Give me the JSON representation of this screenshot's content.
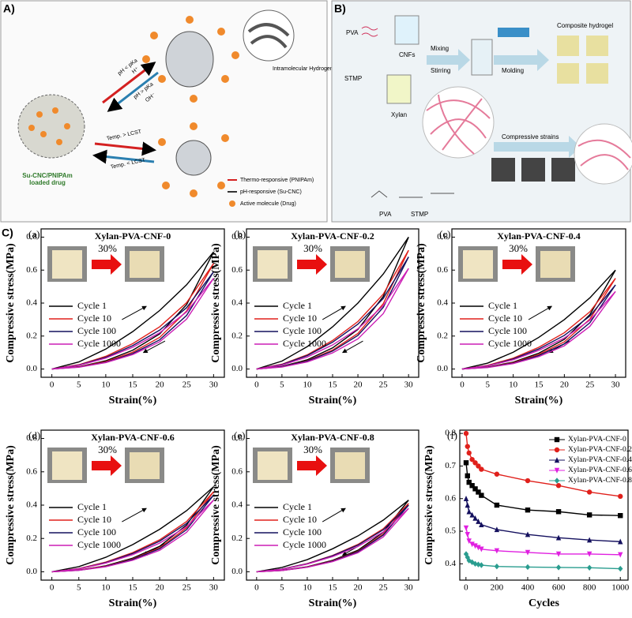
{
  "panels": {
    "A": {
      "label": "A)",
      "ph_low": "pH < pKa",
      "h_ion": "H⁺",
      "ph_high": "pH > pKa",
      "oh_ion": "OH⁻",
      "hbond": "Intramolecular Hydrogen bond",
      "temp_high": "Temp. > LCST",
      "temp_low": "Temp. < LCST",
      "loaded": "Su-CNC/PNIPAm loaded drug",
      "legend": [
        "Thermo-responsive (PNIPAm)",
        "pH-responsive (Su-CNC)",
        "Active molecule (Drug)"
      ]
    },
    "B": {
      "label": "B)",
      "pva": "PVA",
      "cnfs": "CNFs",
      "stmp": "STMP",
      "xylan": "Xylan",
      "mixing": "Mixing",
      "stirring": "Stirring",
      "molding": "Molding",
      "composite": "Composite hydrogel",
      "compressive": "Compressive strains",
      "scheme_pva": "PVA",
      "scheme_stmp": "STMP"
    },
    "C": {
      "label": "C)"
    }
  },
  "chart_data": [
    {
      "type": "line",
      "label": "(a)",
      "title": "Xylan-PVA-CNF-0",
      "annotation": "30%",
      "x_label": "Strain(%)",
      "y_label": "Compressive stress(MPa)",
      "x": [
        0,
        5,
        10,
        15,
        20,
        25,
        30
      ],
      "xlim": [
        -2,
        32
      ],
      "ylim": [
        -0.05,
        0.85
      ],
      "xticks": [
        0,
        5,
        10,
        15,
        20,
        25,
        30
      ],
      "yticks": [
        {
          "value": 0,
          "label": "0.0"
        },
        0.2,
        0.4,
        0.6,
        0.8
      ],
      "legend": "left",
      "series": [
        {
          "name": "Cycle 1",
          "color": "#000000",
          "values": [
            0,
            0.043,
            0.121,
            0.227,
            0.355,
            0.511,
            0.71
          ],
          "unload_values": [
            0,
            0.014,
            0.05,
            0.114,
            0.213,
            0.391,
            0.71
          ]
        },
        {
          "name": "Cycle 10",
          "color": "#e0201b",
          "values": [
            0,
            0.026,
            0.077,
            0.154,
            0.256,
            0.403,
            0.64
          ],
          "unload_values": [
            0,
            0.013,
            0.045,
            0.102,
            0.192,
            0.352,
            0.64
          ]
        },
        {
          "name": "Cycle 100",
          "color": "#14105e",
          "values": [
            0,
            0.024,
            0.071,
            0.142,
            0.236,
            0.372,
            0.59
          ],
          "unload_values": [
            0,
            0.012,
            0.041,
            0.094,
            0.177,
            0.325,
            0.59
          ]
        },
        {
          "name": "Cycle 1000",
          "color": "#cc1fb5",
          "values": [
            0,
            0.022,
            0.066,
            0.132,
            0.22,
            0.347,
            0.55
          ],
          "unload_values": [
            0,
            0.011,
            0.039,
            0.088,
            0.165,
            0.303,
            0.55
          ]
        }
      ]
    },
    {
      "type": "line",
      "label": "(b)",
      "title": "Xylan-PVA-CNF-0.2",
      "annotation": "30%",
      "x_label": "Strain(%)",
      "y_label": "Compressive stress(MPa)",
      "x": [
        0,
        5,
        10,
        15,
        20,
        25,
        30
      ],
      "xlim": [
        -2,
        32
      ],
      "ylim": [
        -0.05,
        0.85
      ],
      "xticks": [
        0,
        5,
        10,
        15,
        20,
        25,
        30
      ],
      "yticks": [
        {
          "value": 0,
          "label": "0.0"
        },
        0.2,
        0.4,
        0.6,
        0.8
      ],
      "legend": "left",
      "series": [
        {
          "name": "Cycle 1",
          "color": "#000000",
          "values": [
            0,
            0.048,
            0.136,
            0.256,
            0.4,
            0.576,
            0.8
          ],
          "unload_values": [
            0,
            0.016,
            0.056,
            0.128,
            0.24,
            0.44,
            0.8
          ]
        },
        {
          "name": "Cycle 10",
          "color": "#e0201b",
          "values": [
            0,
            0.029,
            0.086,
            0.173,
            0.288,
            0.454,
            0.72
          ],
          "unload_values": [
            0,
            0.014,
            0.05,
            0.115,
            0.216,
            0.396,
            0.72
          ]
        },
        {
          "name": "Cycle 100",
          "color": "#14105e",
          "values": [
            0,
            0.027,
            0.082,
            0.163,
            0.272,
            0.428,
            0.68
          ],
          "unload_values": [
            0,
            0.014,
            0.048,
            0.109,
            0.204,
            0.374,
            0.68
          ]
        },
        {
          "name": "Cycle 1000",
          "color": "#cc1fb5",
          "values": [
            0,
            0.024,
            0.073,
            0.146,
            0.244,
            0.384,
            0.61
          ],
          "unload_values": [
            0,
            0.012,
            0.043,
            0.098,
            0.183,
            0.336,
            0.61
          ]
        }
      ]
    },
    {
      "type": "line",
      "label": "(c)",
      "title": "Xylan-PVA-CNF-0.4",
      "annotation": "30%",
      "x_label": "Strain(%)",
      "y_label": "Compressive stress(MPa)",
      "x": [
        0,
        5,
        10,
        15,
        20,
        25,
        30
      ],
      "xlim": [
        -2,
        32
      ],
      "ylim": [
        -0.05,
        0.85
      ],
      "xticks": [
        0,
        5,
        10,
        15,
        20,
        25,
        30
      ],
      "yticks": [
        {
          "value": 0,
          "label": "0.0"
        },
        0.2,
        0.4,
        0.6,
        0.8
      ],
      "legend": "left",
      "series": [
        {
          "name": "Cycle 1",
          "color": "#000000",
          "values": [
            0,
            0.036,
            0.102,
            0.192,
            0.3,
            0.432,
            0.6
          ],
          "unload_values": [
            0,
            0.012,
            0.042,
            0.096,
            0.18,
            0.33,
            0.6
          ]
        },
        {
          "name": "Cycle 10",
          "color": "#e0201b",
          "values": [
            0,
            0.022,
            0.066,
            0.132,
            0.22,
            0.347,
            0.55
          ],
          "unload_values": [
            0,
            0.011,
            0.039,
            0.088,
            0.165,
            0.303,
            0.55
          ]
        },
        {
          "name": "Cycle 100",
          "color": "#14105e",
          "values": [
            0,
            0.02,
            0.061,
            0.122,
            0.204,
            0.321,
            0.51
          ],
          "unload_values": [
            0,
            0.01,
            0.036,
            0.082,
            0.153,
            0.281,
            0.51
          ]
        },
        {
          "name": "Cycle 1000",
          "color": "#cc1fb5",
          "values": [
            0,
            0.019,
            0.056,
            0.113,
            0.188,
            0.296,
            0.47
          ],
          "unload_values": [
            0,
            0.009,
            0.033,
            0.075,
            0.141,
            0.259,
            0.47
          ]
        }
      ]
    },
    {
      "type": "line",
      "label": "(d)",
      "title": "Xylan-PVA-CNF-0.6",
      "annotation": "30%",
      "x_label": "Strain(%)",
      "y_label": "Compressive stress(MPa)",
      "x": [
        0,
        5,
        10,
        15,
        20,
        25,
        30
      ],
      "xlim": [
        -2,
        32
      ],
      "ylim": [
        -0.05,
        0.85
      ],
      "xticks": [
        0,
        5,
        10,
        15,
        20,
        25,
        30
      ],
      "yticks": [
        {
          "value": 0,
          "label": "0.0"
        },
        0.2,
        0.4,
        0.6,
        0.8
      ],
      "legend": "left",
      "series": [
        {
          "name": "Cycle 1",
          "color": "#000000",
          "values": [
            0,
            0.031,
            0.087,
            0.163,
            0.255,
            0.367,
            0.51
          ],
          "unload_values": [
            0,
            0.01,
            0.036,
            0.082,
            0.153,
            0.281,
            0.51
          ]
        },
        {
          "name": "Cycle 10",
          "color": "#e0201b",
          "values": [
            0,
            0.019,
            0.058,
            0.115,
            0.192,
            0.302,
            0.48
          ],
          "unload_values": [
            0,
            0.01,
            0.034,
            0.077,
            0.144,
            0.264,
            0.48
          ]
        },
        {
          "name": "Cycle 100",
          "color": "#14105e",
          "values": [
            0,
            0.018,
            0.055,
            0.11,
            0.184,
            0.29,
            0.46
          ],
          "unload_values": [
            0,
            0.009,
            0.032,
            0.074,
            0.138,
            0.253,
            0.46
          ]
        },
        {
          "name": "Cycle 1000",
          "color": "#cc1fb5",
          "values": [
            0,
            0.017,
            0.052,
            0.103,
            0.172,
            0.271,
            0.43
          ],
          "unload_values": [
            0,
            0.009,
            0.03,
            0.069,
            0.129,
            0.237,
            0.43
          ]
        }
      ]
    },
    {
      "type": "line",
      "label": "(e)",
      "title": "Xylan-PVA-CNF-0.8",
      "annotation": "30%",
      "x_label": "Strain(%)",
      "y_label": "Compressive stress(MPa)",
      "x": [
        0,
        5,
        10,
        15,
        20,
        25,
        30
      ],
      "xlim": [
        -2,
        32
      ],
      "ylim": [
        -0.05,
        0.85
      ],
      "xticks": [
        0,
        5,
        10,
        15,
        20,
        25,
        30
      ],
      "yticks": [
        {
          "value": 0,
          "label": "0.0"
        },
        0.2,
        0.4,
        0.6,
        0.8
      ],
      "legend": "left",
      "series": [
        {
          "name": "Cycle 1",
          "color": "#000000",
          "values": [
            0,
            0.026,
            0.073,
            0.138,
            0.215,
            0.31,
            0.43
          ],
          "unload_values": [
            0,
            0.009,
            0.03,
            0.069,
            0.129,
            0.237,
            0.43
          ]
        },
        {
          "name": "Cycle 10",
          "color": "#e0201b",
          "values": [
            0,
            0.016,
            0.049,
            0.098,
            0.164,
            0.258,
            0.41
          ],
          "unload_values": [
            0,
            0.008,
            0.029,
            0.066,
            0.123,
            0.226,
            0.41
          ]
        },
        {
          "name": "Cycle 100",
          "color": "#14105e",
          "values": [
            0,
            0.016,
            0.048,
            0.096,
            0.16,
            0.252,
            0.4
          ],
          "unload_values": [
            0,
            0.008,
            0.028,
            0.064,
            0.12,
            0.22,
            0.4
          ]
        },
        {
          "name": "Cycle 1000",
          "color": "#cc1fb5",
          "values": [
            0,
            0.015,
            0.046,
            0.091,
            0.152,
            0.239,
            0.38
          ],
          "unload_values": [
            0,
            0.008,
            0.027,
            0.061,
            0.114,
            0.209,
            0.38
          ]
        }
      ]
    },
    {
      "type": "line",
      "label": "(f)",
      "x_label": "Cycles",
      "y_label": "Compressive stress(MPa)",
      "x": [
        1,
        10,
        20,
        40,
        60,
        80,
        100,
        200,
        400,
        600,
        800,
        1000
      ],
      "xlim": [
        -40,
        1050
      ],
      "ylim": [
        0.35,
        0.81
      ],
      "xticks": [
        0,
        200,
        400,
        600,
        800,
        1000
      ],
      "yticks": [
        0.4,
        0.5,
        0.6,
        0.7,
        0.8
      ],
      "legend": "upper right",
      "series": [
        {
          "name": "Xylan-PVA-CNF-0",
          "color": "#000000",
          "marker": "square",
          "values": [
            0.71,
            0.67,
            0.65,
            0.64,
            0.63,
            0.62,
            0.61,
            0.58,
            0.565,
            0.56,
            0.55,
            0.548
          ]
        },
        {
          "name": "Xylan-PVA-CNF-0.2",
          "color": "#e0201b",
          "marker": "circle",
          "values": [
            0.8,
            0.76,
            0.74,
            0.72,
            0.71,
            0.7,
            0.69,
            0.675,
            0.655,
            0.64,
            0.62,
            0.607
          ]
        },
        {
          "name": "Xylan-PVA-CNF-0.4",
          "color": "#14105e",
          "marker": "triangle",
          "values": [
            0.6,
            0.58,
            0.56,
            0.55,
            0.54,
            0.53,
            0.52,
            0.505,
            0.49,
            0.48,
            0.473,
            0.468
          ]
        },
        {
          "name": "Xylan-PVA-CNF-0.6",
          "color": "#e020e0",
          "marker": "triangle-down",
          "values": [
            0.51,
            0.49,
            0.47,
            0.46,
            0.455,
            0.45,
            0.445,
            0.44,
            0.435,
            0.43,
            0.43,
            0.428
          ]
        },
        {
          "name": "Xylan-PVA-CNF-0.8",
          "color": "#2a9d8f",
          "marker": "diamond",
          "values": [
            0.43,
            0.42,
            0.41,
            0.405,
            0.4,
            0.398,
            0.396,
            0.392,
            0.39,
            0.389,
            0.388,
            0.385
          ]
        }
      ]
    }
  ]
}
